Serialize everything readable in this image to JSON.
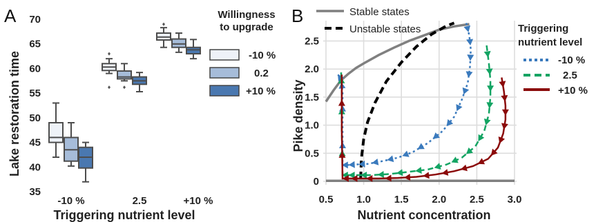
{
  "panels": {
    "a": "A",
    "b": "B"
  },
  "chart_data": [
    {
      "type": "box",
      "xlabel": "Triggering nutrient level",
      "ylabel": "Lake restoration time",
      "ylim": [
        35,
        70
      ],
      "yticks": [
        35,
        40,
        45,
        50,
        55,
        60,
        65,
        70
      ],
      "categories": [
        "-10 %",
        "2.5",
        "+10 %"
      ],
      "grid": false,
      "legend": {
        "title": [
          "Willingness",
          "to upgrade"
        ],
        "placement": "right",
        "entries": [
          {
            "label": "-10 %",
            "color": "#eef2f8"
          },
          {
            "label": "0.2",
            "color": "#a6bcd9"
          },
          {
            "label": "+10 %",
            "color": "#4a78b0"
          }
        ]
      },
      "series": [
        {
          "name": "-10 %",
          "color": "#eef2f8",
          "boxes": [
            {
              "whislo": 42,
              "q1": 45,
              "med": 46,
              "q3": 49,
              "whishi": 53,
              "fliers": []
            },
            {
              "whislo": 59,
              "q1": 59.6,
              "med": 60.3,
              "q3": 61,
              "whishi": 62,
              "fliers": [
                56.2,
                63
              ]
            },
            {
              "whislo": 64.3,
              "q1": 65.8,
              "med": 66.4,
              "q3": 67.2,
              "whishi": 68.3,
              "fliers": [
                69
              ]
            }
          ]
        },
        {
          "name": "0.2",
          "color": "#a6bcd9",
          "boxes": [
            {
              "whislo": 40.2,
              "q1": 41.2,
              "med": 43.5,
              "q3": 46,
              "whishi": 49,
              "fliers": []
            },
            {
              "whislo": 57.5,
              "q1": 57.9,
              "med": 58.3,
              "q3": 59.5,
              "whishi": 61,
              "fliers": [
                56.2
              ]
            },
            {
              "whislo": 63.3,
              "q1": 64.3,
              "med": 65,
              "q3": 66,
              "whishi": 67.2,
              "fliers": []
            }
          ]
        },
        {
          "name": "+10 %",
          "color": "#4a78b0",
          "boxes": [
            {
              "whislo": 37,
              "q1": 39.8,
              "med": 42,
              "q3": 44,
              "whishi": 45,
              "fliers": []
            },
            {
              "whislo": 55.3,
              "q1": 56.8,
              "med": 57.5,
              "q3": 58.3,
              "whishi": 59.2,
              "fliers": []
            },
            {
              "whislo": 62,
              "q1": 63,
              "med": 63.8,
              "q3": 64.3,
              "whishi": 65.9,
              "fliers": []
            }
          ]
        }
      ]
    },
    {
      "type": "line",
      "xlabel": "Nutrient concentration",
      "ylabel": "Pike density",
      "xlim": [
        0.5,
        3.0
      ],
      "ylim": [
        -0.05,
        2.85
      ],
      "xticks": [
        "0.5",
        "1.0",
        "1.5",
        "2.0",
        "2.5",
        "3.0"
      ],
      "yticks": [
        "0",
        "0.5",
        "1.0",
        "1.5",
        "2.0",
        "2.5"
      ],
      "grid": true,
      "legend_states": {
        "placement": "top",
        "entries": [
          {
            "label": "Stable states",
            "color": "#808080",
            "style": "solid"
          },
          {
            "label": "Unstable states",
            "color": "#000000",
            "style": "dashed"
          }
        ]
      },
      "legend_trigger": {
        "title": [
          "Triggering",
          "nutrient level"
        ],
        "placement": "right",
        "entries": [
          {
            "label": "-10 %",
            "color": "#3a7abd",
            "style": "dotted"
          },
          {
            "label": "2.5",
            "color": "#13a463",
            "style": "dashed"
          },
          {
            "label": "+10 %",
            "color": "#8b0a0a",
            "style": "solid"
          }
        ]
      },
      "stable_upper": {
        "x": [
          0.5,
          0.6,
          0.7,
          0.8,
          0.9,
          1.0,
          1.2,
          1.4,
          1.6,
          1.8,
          2.0,
          2.2,
          2.4
        ],
        "y": [
          1.42,
          1.62,
          1.8,
          1.92,
          2.02,
          2.1,
          2.25,
          2.38,
          2.5,
          2.6,
          2.7,
          2.76,
          2.8
        ]
      },
      "stable_lower": {
        "x": [
          0.5,
          1.0,
          1.5,
          2.0,
          2.5,
          3.0
        ],
        "y": [
          0.01,
          0.01,
          0.01,
          0.01,
          0.01,
          0.01
        ]
      },
      "unstable": {
        "x": [
          0.96,
          0.97,
          1.0,
          1.05,
          1.15,
          1.3,
          1.5,
          1.7,
          1.9,
          2.1,
          2.2
        ],
        "y": [
          0.05,
          0.4,
          0.75,
          1.05,
          1.4,
          1.78,
          2.12,
          2.4,
          2.62,
          2.77,
          2.82
        ]
      },
      "series": [
        {
          "name": "-10 %",
          "color": "#3a7abd",
          "style": "dotted",
          "x": [
            2.36,
            2.4,
            2.42,
            2.41,
            2.38,
            2.3,
            2.2,
            2.05,
            1.85,
            1.65,
            1.45,
            1.25,
            1.05,
            0.9,
            0.78,
            0.72,
            0.72,
            0.72,
            0.7,
            0.66
          ],
          "y": [
            2.82,
            2.6,
            2.35,
            2.05,
            1.75,
            1.45,
            1.15,
            0.9,
            0.68,
            0.52,
            0.42,
            0.36,
            0.31,
            0.3,
            0.29,
            0.29,
            1.0,
            1.6,
            1.82,
            1.9
          ]
        },
        {
          "name": "2.5",
          "color": "#13a463",
          "style": "dashed",
          "x": [
            2.63,
            2.66,
            2.68,
            2.68,
            2.66,
            2.6,
            2.48,
            2.3,
            2.1,
            1.85,
            1.6,
            1.35,
            1.1,
            0.9,
            0.78,
            0.72,
            0.71,
            0.71,
            0.7
          ],
          "y": [
            2.42,
            2.1,
            1.8,
            1.5,
            1.2,
            0.9,
            0.62,
            0.42,
            0.3,
            0.21,
            0.17,
            0.13,
            0.11,
            0.11,
            0.11,
            0.11,
            0.9,
            1.6,
            2.0
          ]
        },
        {
          "name": "+10 %",
          "color": "#8b0a0a",
          "style": "solid",
          "x": [
            2.83,
            2.86,
            2.88,
            2.88,
            2.85,
            2.78,
            2.65,
            2.45,
            2.2,
            1.95,
            1.7,
            1.45,
            1.2,
            0.95,
            0.8,
            0.72,
            0.71,
            0.71
          ],
          "y": [
            1.85,
            1.6,
            1.35,
            1.1,
            0.85,
            0.6,
            0.4,
            0.27,
            0.18,
            0.12,
            0.08,
            0.06,
            0.05,
            0.05,
            0.05,
            0.05,
            0.9,
            1.9
          ]
        }
      ]
    }
  ]
}
